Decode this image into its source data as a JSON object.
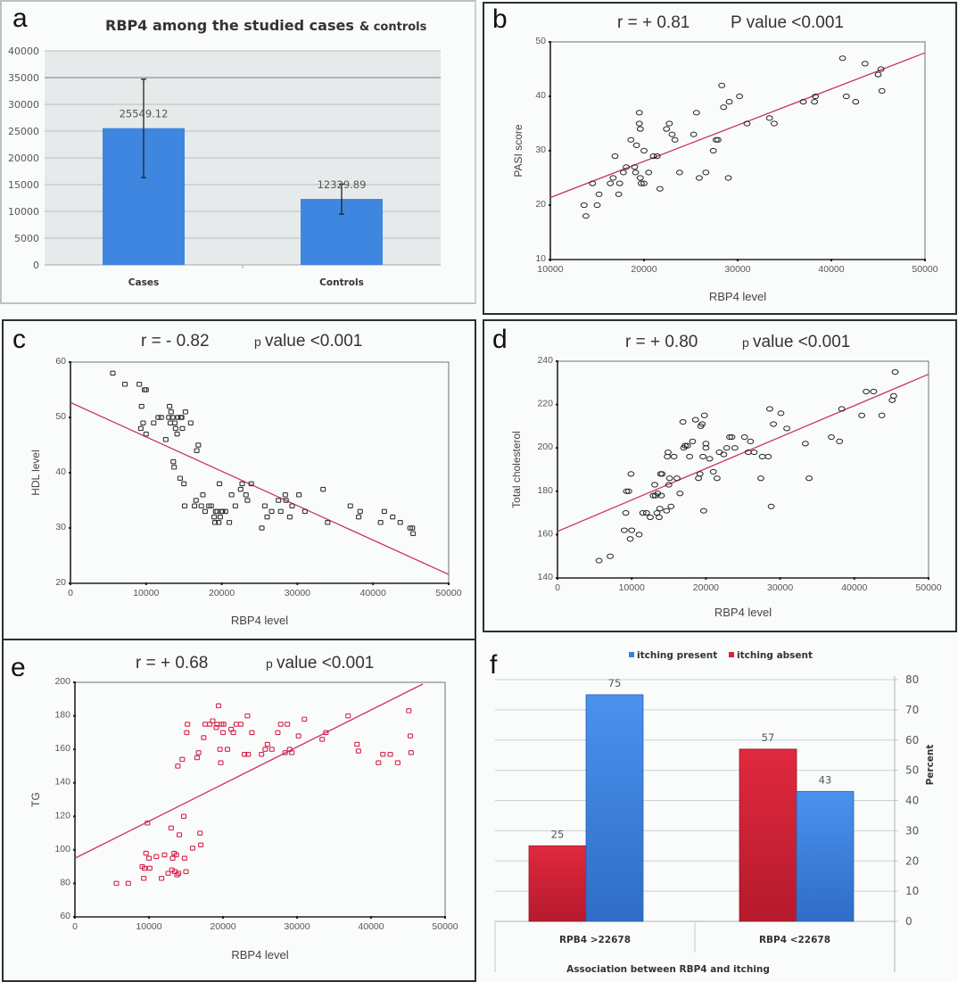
{
  "figure": {
    "panel_letters": [
      "a",
      "b",
      "c",
      "d",
      "e",
      "f"
    ]
  },
  "chart_data": [
    {
      "id": "a",
      "type": "bar",
      "title": "RBP4 among the studied cases & controls",
      "title_main": "RBP4 among the studied cases",
      "title_suffix": "& controls",
      "categories": [
        "Cases",
        "Controls"
      ],
      "values": [
        25549.12,
        12329.89
      ],
      "value_labels": [
        "25549.12",
        "12329.89"
      ],
      "error_bars": [
        [
          16300,
          34700
        ],
        [
          9500,
          15100
        ]
      ],
      "xlabel": "",
      "ylabel": "",
      "ylim": [
        0,
        40000
      ],
      "yticks": [
        "0",
        "5000",
        "10000",
        "15000",
        "20000",
        "25000",
        "30000",
        "35000",
        "40000"
      ],
      "grid": true,
      "bar_color": "#3f86e0"
    },
    {
      "id": "b",
      "type": "scatter",
      "annotation_r": "r = + 0.81",
      "annotation_p": "P value <0.001",
      "xlabel": "RBP4 level",
      "ylabel": "PASI score",
      "xlim": [
        10000,
        50000
      ],
      "ylim": [
        10,
        50
      ],
      "xticks": [
        "10000",
        "20000",
        "30000",
        "40000",
        "50000"
      ],
      "yticks": [
        "10",
        "20",
        "30",
        "40",
        "50"
      ],
      "marker": "circle",
      "marker_color": "#222222",
      "fit_line": {
        "x": [
          10000,
          50000
        ],
        "y": [
          21.4,
          48.0
        ],
        "color": "#cc3366"
      },
      "x": [
        13600,
        13800,
        14500,
        15000,
        15200,
        16400,
        16700,
        16900,
        17300,
        17400,
        17800,
        18100,
        18600,
        19000,
        19100,
        19200,
        19500,
        19500,
        19600,
        19600,
        19700,
        20000,
        20000,
        20500,
        21000,
        21400,
        21700,
        22400,
        22700,
        23000,
        23300,
        23800,
        25300,
        25600,
        25900,
        26600,
        27400,
        27700,
        27900,
        28300,
        28500,
        29000,
        29100,
        30200,
        31000,
        33400,
        33900,
        37000,
        38200,
        38300,
        41200,
        41600,
        42600,
        43600,
        45000,
        45300,
        45400
      ],
      "y": [
        20,
        18,
        24,
        20,
        22,
        24,
        25,
        29,
        22,
        24,
        26,
        27,
        32,
        27,
        26,
        31,
        37,
        35,
        34,
        25,
        24,
        30,
        24,
        26,
        29,
        29,
        23,
        34,
        35,
        33,
        32,
        26,
        33,
        37,
        25,
        26,
        30,
        32,
        32,
        42,
        38,
        25,
        39,
        40,
        35,
        36,
        35,
        39,
        39,
        40,
        47,
        40,
        39,
        46,
        44,
        45,
        41
      ]
    },
    {
      "id": "c",
      "type": "scatter",
      "annotation_r": "r = - 0.82",
      "annotation_p_prefix": "p",
      "annotation_p": "value <0.001",
      "xlabel": "RBP4 level",
      "ylabel": "HDL level",
      "xlim": [
        0,
        50000
      ],
      "ylim": [
        20,
        60
      ],
      "xticks": [
        "0",
        "10000",
        "20000",
        "30000",
        "40000",
        "50000"
      ],
      "yticks": [
        "20",
        "30",
        "40",
        "50",
        "60"
      ],
      "marker": "square",
      "marker_color": "#333333",
      "fit_line": {
        "x": [
          0,
          50000
        ],
        "y": [
          52.7,
          21.6
        ],
        "color": "#cc3366"
      },
      "x": [
        5600,
        7200,
        9100,
        9300,
        9400,
        9600,
        9800,
        10000,
        10000,
        11000,
        11600,
        12000,
        12600,
        13000,
        13100,
        13200,
        13300,
        13500,
        13600,
        13700,
        13800,
        13900,
        14100,
        14200,
        14500,
        14600,
        14700,
        14800,
        15000,
        15100,
        15200,
        15900,
        16400,
        16600,
        16700,
        16900,
        17300,
        17500,
        17800,
        18300,
        18600,
        19000,
        19100,
        19200,
        19400,
        19600,
        19700,
        19800,
        20000,
        20100,
        20500,
        21000,
        21300,
        21800,
        22500,
        22700,
        23200,
        23400,
        23900,
        25300,
        25700,
        26000,
        26600,
        27500,
        27800,
        28400,
        28500,
        29000,
        29300,
        30200,
        31000,
        33400,
        34000,
        37000,
        38100,
        38300,
        41000,
        41500,
        42600,
        43600,
        44900,
        45200,
        45300
      ],
      "y": [
        58,
        56,
        56,
        48,
        52,
        49,
        55,
        55,
        47,
        49,
        50,
        50,
        46,
        50,
        52,
        49,
        51,
        50,
        42,
        41,
        49,
        48,
        47,
        50,
        39,
        50,
        50,
        48,
        38,
        34,
        51,
        49,
        34,
        35,
        44,
        45,
        34,
        36,
        33,
        34,
        34,
        32,
        31,
        33,
        33,
        31,
        38,
        32,
        33,
        33,
        33,
        31,
        36,
        34,
        37,
        38,
        36,
        35,
        38,
        30,
        34,
        32,
        33,
        35,
        33,
        36,
        35,
        32,
        34,
        36,
        33,
        37,
        31,
        34,
        32,
        33,
        31,
        33,
        32,
        31,
        30,
        30,
        29
      ]
    },
    {
      "id": "d",
      "type": "scatter",
      "annotation_r": "r = + 0.80",
      "annotation_p_prefix": "p",
      "annotation_p": "value <0.001",
      "xlabel": "RBP4 level",
      "ylabel": "Total cholesterol",
      "xlim": [
        0,
        50000
      ],
      "ylim": [
        140,
        240
      ],
      "xticks": [
        "0",
        "10000",
        "20000",
        "30000",
        "40000",
        "50000"
      ],
      "yticks": [
        "140",
        "160",
        "180",
        "200",
        "220",
        "240"
      ],
      "marker": "circle",
      "marker_color": "#222222",
      "fit_line": {
        "x": [
          0,
          50000
        ],
        "y": [
          161.5,
          234.0
        ],
        "color": "#cc3366"
      },
      "x": [
        5600,
        7100,
        9000,
        9200,
        9300,
        9600,
        9800,
        9900,
        10000,
        11000,
        11500,
        12000,
        12500,
        12900,
        13100,
        13200,
        13400,
        13500,
        13700,
        13800,
        13900,
        14000,
        14100,
        14700,
        14800,
        14900,
        15000,
        15100,
        15300,
        15700,
        16100,
        16500,
        16900,
        17000,
        17200,
        17500,
        17800,
        18200,
        18600,
        19000,
        19200,
        19300,
        19500,
        19600,
        19700,
        19800,
        20000,
        20000,
        20500,
        21000,
        21500,
        21800,
        22400,
        22800,
        23200,
        23500,
        23900,
        25200,
        25700,
        26000,
        26500,
        27400,
        27600,
        28400,
        28600,
        28800,
        29100,
        30100,
        30900,
        33400,
        33900,
        36900,
        38000,
        38300,
        41000,
        41600,
        42600,
        43700,
        45100,
        45300,
        45500
      ],
      "y": [
        148,
        150,
        162,
        170,
        180,
        180,
        158,
        188,
        162,
        160,
        170,
        170,
        168,
        178,
        183,
        178,
        170,
        179,
        168,
        172,
        188,
        178,
        188,
        171,
        196,
        198,
        183,
        186,
        173,
        196,
        186,
        179,
        212,
        200,
        201,
        201,
        196,
        203,
        213,
        186,
        188,
        210,
        211,
        196,
        171,
        215,
        202,
        200,
        195,
        189,
        186,
        198,
        197,
        200,
        205,
        205,
        200,
        205,
        198,
        203,
        198,
        186,
        196,
        196,
        218,
        173,
        211,
        216,
        209,
        202,
        186,
        205,
        203,
        218,
        215,
        226,
        226,
        215,
        222,
        224,
        235
      ]
    },
    {
      "id": "e",
      "type": "scatter",
      "annotation_r": "r = + 0.68",
      "annotation_p_prefix": "p",
      "annotation_p": "value  <0.001",
      "xlabel": "RBP4 level",
      "ylabel": "TG",
      "xlim": [
        0,
        50000
      ],
      "ylim": [
        60,
        200
      ],
      "xticks": [
        "0",
        "10000",
        "20000",
        "30000",
        "40000",
        "50000"
      ],
      "yticks": [
        "60",
        "80",
        "100",
        "120",
        "140",
        "160",
        "180",
        "200"
      ],
      "marker": "square",
      "marker_color": "#d4244a",
      "fit_line": {
        "x": [
          0,
          47000
        ],
        "y": [
          95,
          199
        ],
        "color": "#cc3366"
      },
      "x": [
        5600,
        7200,
        9100,
        9300,
        9400,
        9600,
        9800,
        10000,
        10100,
        11000,
        11700,
        12100,
        12600,
        13000,
        13100,
        13200,
        13400,
        13500,
        13700,
        13800,
        13900,
        14000,
        14100,
        14500,
        14700,
        14800,
        15000,
        15100,
        15200,
        15900,
        16500,
        16700,
        16900,
        17000,
        17400,
        17600,
        18200,
        18600,
        19100,
        19200,
        19400,
        19600,
        19700,
        19800,
        20000,
        20100,
        20600,
        21100,
        21400,
        21800,
        22400,
        22900,
        23300,
        23400,
        23900,
        25200,
        25700,
        26000,
        26600,
        27400,
        27800,
        28400,
        28700,
        29000,
        29300,
        30200,
        31000,
        33400,
        33900,
        36900,
        38100,
        38300,
        41000,
        41600,
        42600,
        43600,
        45100,
        45300,
        45400
      ],
      "y": [
        80,
        80,
        90,
        83,
        89,
        98,
        116,
        95,
        89,
        96,
        83,
        97,
        86,
        113,
        88,
        95,
        98,
        87,
        97,
        85,
        150,
        86,
        109,
        154,
        120,
        95,
        87,
        170,
        175,
        101,
        155,
        158,
        110,
        103,
        167,
        175,
        175,
        177,
        173,
        175,
        186,
        160,
        152,
        175,
        170,
        175,
        160,
        172,
        170,
        175,
        175,
        157,
        180,
        157,
        170,
        157,
        160,
        163,
        160,
        170,
        175,
        158,
        175,
        160,
        158,
        168,
        178,
        166,
        170,
        180,
        163,
        159,
        152,
        157,
        157,
        152,
        183,
        168,
        158
      ]
    },
    {
      "id": "f",
      "type": "bar",
      "title": "",
      "xlabel": "Association between RBP4 and itching",
      "ylabel": "Percent",
      "categories": [
        "RPB4 >22678",
        "RBP4 <22678"
      ],
      "series": [
        {
          "name": "itching   absent",
          "values": [
            25,
            57
          ],
          "color": "#d9243a"
        },
        {
          "name": "itching   present",
          "values": [
            75,
            43
          ],
          "color": "#3a80de"
        }
      ],
      "legend_order": [
        "itching   present",
        "itching   absent"
      ],
      "legend_position": "top",
      "ylim": [
        0,
        80
      ],
      "yticks": [
        "0",
        "10",
        "20",
        "30",
        "40",
        "50",
        "60",
        "70",
        "80"
      ],
      "y_axis_side": "right",
      "grid": true
    }
  ]
}
